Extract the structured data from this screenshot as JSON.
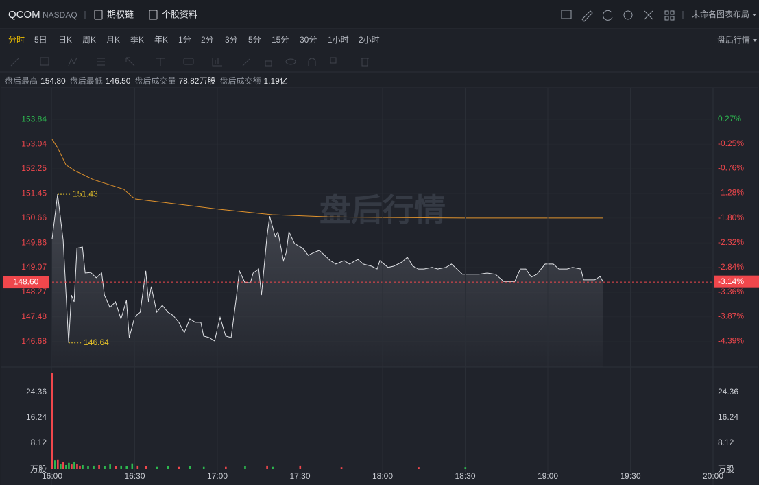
{
  "header": {
    "symbol": "QCOM",
    "exchange": "NASDAQ",
    "links": [
      "期权链",
      "个股资料"
    ],
    "layout_name": "未命名图表布局"
  },
  "tabs": {
    "items": [
      "分时",
      "5日",
      "日K",
      "周K",
      "月K",
      "季K",
      "年K",
      "1分",
      "2分",
      "3分",
      "5分",
      "15分",
      "30分",
      "1小时",
      "2小时"
    ],
    "active": "分时",
    "active_color": "#f0c000",
    "right_menu": "盘后行情"
  },
  "stats": [
    {
      "label": "盘后最高",
      "value": "154.80"
    },
    {
      "label": "盘后最低",
      "value": "146.50"
    },
    {
      "label": "盘后成交量",
      "value": "78.82万股"
    },
    {
      "label": "盘后成交额",
      "value": "1.19亿"
    }
  ],
  "watermark": "盘后行情",
  "chart_data": [
    {
      "type": "line",
      "xlim": [
        "16:00",
        "20:00"
      ],
      "ylim": [
        145.86,
        154.86
      ],
      "yticks": [
        146.68,
        147.48,
        148.27,
        149.07,
        149.86,
        150.66,
        151.45,
        152.25,
        153.04,
        153.84
      ],
      "y2lim": [
        -4.93,
        0.93
      ],
      "y2ticks": [
        {
          "value": -4.39,
          "label": "-4.39%"
        },
        {
          "value": -3.87,
          "label": "-3.87%"
        },
        {
          "value": -3.36,
          "label": "-3.36%"
        },
        {
          "value": -2.84,
          "label": "-2.84%"
        },
        {
          "value": -2.32,
          "label": "-2.32%"
        },
        {
          "value": -1.8,
          "label": "-1.80%"
        },
        {
          "value": -1.28,
          "label": "-1.28%"
        },
        {
          "value": -0.76,
          "label": "-0.76%"
        },
        {
          "value": -0.25,
          "label": "-0.25%"
        },
        {
          "value": 0.27,
          "label": "0.27%"
        }
      ],
      "grid": true,
      "up_color": "#2db84f",
      "down_color": "#f0474c",
      "series": [
        {
          "color": "#e2e4e8",
          "area": true,
          "x": [
            "16:00",
            "16:02",
            "16:04",
            "16:06",
            "16:07",
            "16:08",
            "16:09",
            "16:11",
            "16:12",
            "16:14",
            "16:16",
            "16:18",
            "16:19",
            "16:21",
            "16:23",
            "16:25",
            "16:27",
            "16:28",
            "16:30",
            "16:32",
            "16:34",
            "16:35",
            "16:36",
            "16:38",
            "16:40",
            "16:42",
            "16:44",
            "16:46",
            "16:48",
            "16:50",
            "16:52",
            "16:54",
            "16:55",
            "16:57",
            "16:59",
            "17:01",
            "17:03",
            "17:05",
            "17:07",
            "17:08",
            "17:10",
            "17:12",
            "17:13",
            "17:15",
            "17:16",
            "17:18",
            "17:19",
            "17:21",
            "17:22",
            "17:24",
            "17:25",
            "17:26",
            "17:28",
            "17:31",
            "17:33",
            "17:35",
            "17:37",
            "17:39",
            "17:41",
            "17:43",
            "17:46",
            "17:48",
            "17:51",
            "17:53",
            "17:56",
            "17:58",
            "17:59",
            "18:02",
            "18:04",
            "18:07",
            "18:09",
            "18:11",
            "18:13",
            "18:15",
            "18:18",
            "18:20",
            "18:23",
            "18:25",
            "18:27",
            "18:29",
            "18:33",
            "18:35",
            "18:38",
            "18:41",
            "18:44",
            "18:48",
            "18:50",
            "18:52",
            "18:54",
            "18:56",
            "18:59",
            "19:02",
            "19:04",
            "19:07",
            "19:09",
            "19:12",
            "19:13",
            "19:17",
            "19:19",
            "19:20"
          ],
          "values": [
            149.99,
            151.43,
            149.95,
            146.64,
            148.18,
            147.96,
            149.69,
            149.73,
            148.89,
            148.91,
            148.74,
            148.89,
            148.18,
            147.78,
            147.96,
            147.41,
            148.01,
            146.81,
            147.48,
            147.63,
            148.96,
            147.96,
            148.45,
            147.63,
            147.85,
            147.63,
            147.52,
            147.3,
            146.97,
            147.41,
            147.3,
            147.3,
            146.86,
            146.81,
            146.7,
            147.46,
            146.86,
            146.81,
            148.18,
            148.96,
            148.58,
            148.58,
            148.89,
            149.02,
            148.18,
            150.06,
            150.72,
            150.06,
            150.22,
            149.29,
            149.55,
            150.22,
            149.84,
            149.69,
            149.46,
            149.55,
            149.62,
            149.46,
            149.29,
            149.18,
            149.29,
            149.18,
            149.33,
            149.18,
            149.11,
            149.02,
            149.29,
            149.07,
            149.11,
            149.24,
            149.4,
            149.11,
            149.02,
            149.02,
            149.07,
            149.02,
            149.07,
            149.18,
            149.02,
            148.85,
            148.85,
            148.85,
            148.89,
            148.85,
            148.62,
            148.62,
            149.02,
            149.02,
            148.76,
            148.85,
            149.18,
            149.18,
            149.02,
            149.02,
            149.07,
            149.02,
            148.67,
            148.67,
            148.78,
            148.62
          ]
        },
        {
          "color": "#e0922c",
          "x": [
            "16:00",
            "16:02",
            "16:05",
            "16:08",
            "16:15",
            "16:20",
            "16:26",
            "16:30",
            "16:40",
            "16:50",
            "17:00",
            "17:10",
            "17:20",
            "17:40",
            "18:00",
            "18:30",
            "19:20"
          ],
          "values": [
            153.2,
            152.93,
            152.38,
            152.2,
            151.9,
            151.76,
            151.59,
            151.28,
            151.17,
            151.06,
            150.95,
            150.86,
            150.77,
            150.7,
            150.68,
            150.66,
            150.66
          ]
        }
      ],
      "last_price": {
        "value": 148.6,
        "label": "148.60",
        "change": {
          "value": -3.14,
          "label": "-3.14%"
        }
      },
      "annotations": [
        {
          "x": "16:02",
          "value": 151.43
        },
        {
          "x": "16:06",
          "value": 146.64
        }
      ],
      "annotation_color": "#e6c229"
    },
    {
      "type": "bar",
      "xlim": [
        "16:00",
        "20:00"
      ],
      "xticks": [
        "16:00",
        "16:30",
        "17:00",
        "17:30",
        "18:00",
        "18:30",
        "19:00",
        "19:30",
        "20:00"
      ],
      "ylim": [
        0,
        32.48
      ],
      "yticks": [
        8.12,
        16.24,
        24.36
      ],
      "y_unit": "万股",
      "x": [
        "16:00",
        "16:01",
        "16:02",
        "16:03",
        "16:04",
        "16:05",
        "16:06",
        "16:07",
        "16:08",
        "16:09",
        "16:10",
        "16:11",
        "16:13",
        "16:15",
        "16:17",
        "16:19",
        "16:21",
        "16:23",
        "16:25",
        "16:27",
        "16:29",
        "16:31",
        "16:34",
        "16:38",
        "16:42",
        "16:46",
        "16:50",
        "16:55",
        "17:03",
        "17:10",
        "17:18",
        "17:20",
        "17:30",
        "17:45",
        "18:13",
        "18:30"
      ],
      "values": [
        30.5,
        2.6,
        2.9,
        1.5,
        2.0,
        1.1,
        1.8,
        1.3,
        2.2,
        1.5,
        0.9,
        1.1,
        0.7,
        0.9,
        1.1,
        0.7,
        1.3,
        0.7,
        0.9,
        0.7,
        1.6,
        0.9,
        0.7,
        0.5,
        0.7,
        0.5,
        0.7,
        0.5,
        0.5,
        0.7,
        0.9,
        0.5,
        0.9,
        0.4,
        0.4,
        0.4
      ],
      "bar_colors": [
        "#f0474c",
        "#2db84f",
        "#f0474c",
        "#2db84f",
        "#f0474c",
        "#2db84f",
        "#2db84f",
        "#f0474c",
        "#2db84f",
        "#f0474c",
        "#f0474c",
        "#2db84f",
        "#2db84f",
        "#2db84f",
        "#f0474c",
        "#2db84f",
        "#2db84f",
        "#f0474c",
        "#2db84f",
        "#2db84f",
        "#2db84f",
        "#f0474c",
        "#f0474c",
        "#2db84f",
        "#2db84f",
        "#f0474c",
        "#2db84f",
        "#2db84f",
        "#f0474c",
        "#2db84f",
        "#f0474c",
        "#2db84f",
        "#f0474c",
        "#f0474c",
        "#f0474c",
        "#2db84f"
      ]
    }
  ]
}
